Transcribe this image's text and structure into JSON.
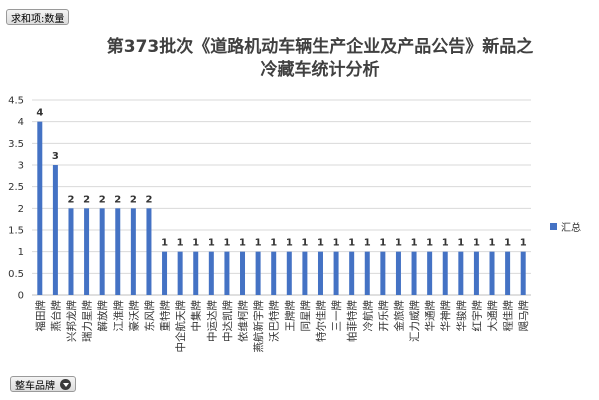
{
  "pivot": {
    "value_field": "求和项:数量",
    "axis_field": "整车品牌"
  },
  "title_lines": [
    "第373批次《道路机动车辆生产企业及产品公告》新品之",
    "冷藏车统计分析"
  ],
  "colors": {
    "bar": "#4472c4",
    "grid": "#d9d9d9",
    "axis": "#bfbfbf"
  },
  "chart_data": {
    "type": "bar",
    "title": "第373批次《道路机动车辆生产企业及产品公告》新品之冷藏车统计分析",
    "categories": [
      "福田牌",
      "燕台牌",
      "兴邦龙牌",
      "瑞力星牌",
      "解放牌",
      "江淮牌",
      "豪沃牌",
      "东风牌",
      "重特牌",
      "中企航天牌",
      "中集牌",
      "中运达牌",
      "中达凯牌",
      "依维柯牌",
      "燕航新宇牌",
      "沃巴特牌",
      "王牌牌",
      "同星牌",
      "特尔佳牌",
      "三一牌",
      "帕菲特牌",
      "冷航牌",
      "开乐牌",
      "金旅牌",
      "汇力威牌",
      "华通牌",
      "华神牌",
      "华骏牌",
      "红宇牌",
      "大通牌",
      "程佳牌",
      "飓马牌"
    ],
    "series": [
      {
        "name": "汇总",
        "values": [
          4,
          3,
          2,
          2,
          2,
          2,
          2,
          2,
          1,
          1,
          1,
          1,
          1,
          1,
          1,
          1,
          1,
          1,
          1,
          1,
          1,
          1,
          1,
          1,
          1,
          1,
          1,
          1,
          1,
          1,
          1,
          1
        ]
      }
    ],
    "ylim": [
      0,
      4.5
    ],
    "yticks": [
      "0",
      "0.5",
      "1",
      "1.5",
      "2",
      "2.5",
      "3",
      "3.5",
      "4",
      "4.5"
    ],
    "ytick_values": [
      0,
      0.5,
      1,
      1.5,
      2,
      2.5,
      3,
      3.5,
      4,
      4.5
    ],
    "grid": true,
    "legend": "right",
    "data_labels": true
  }
}
